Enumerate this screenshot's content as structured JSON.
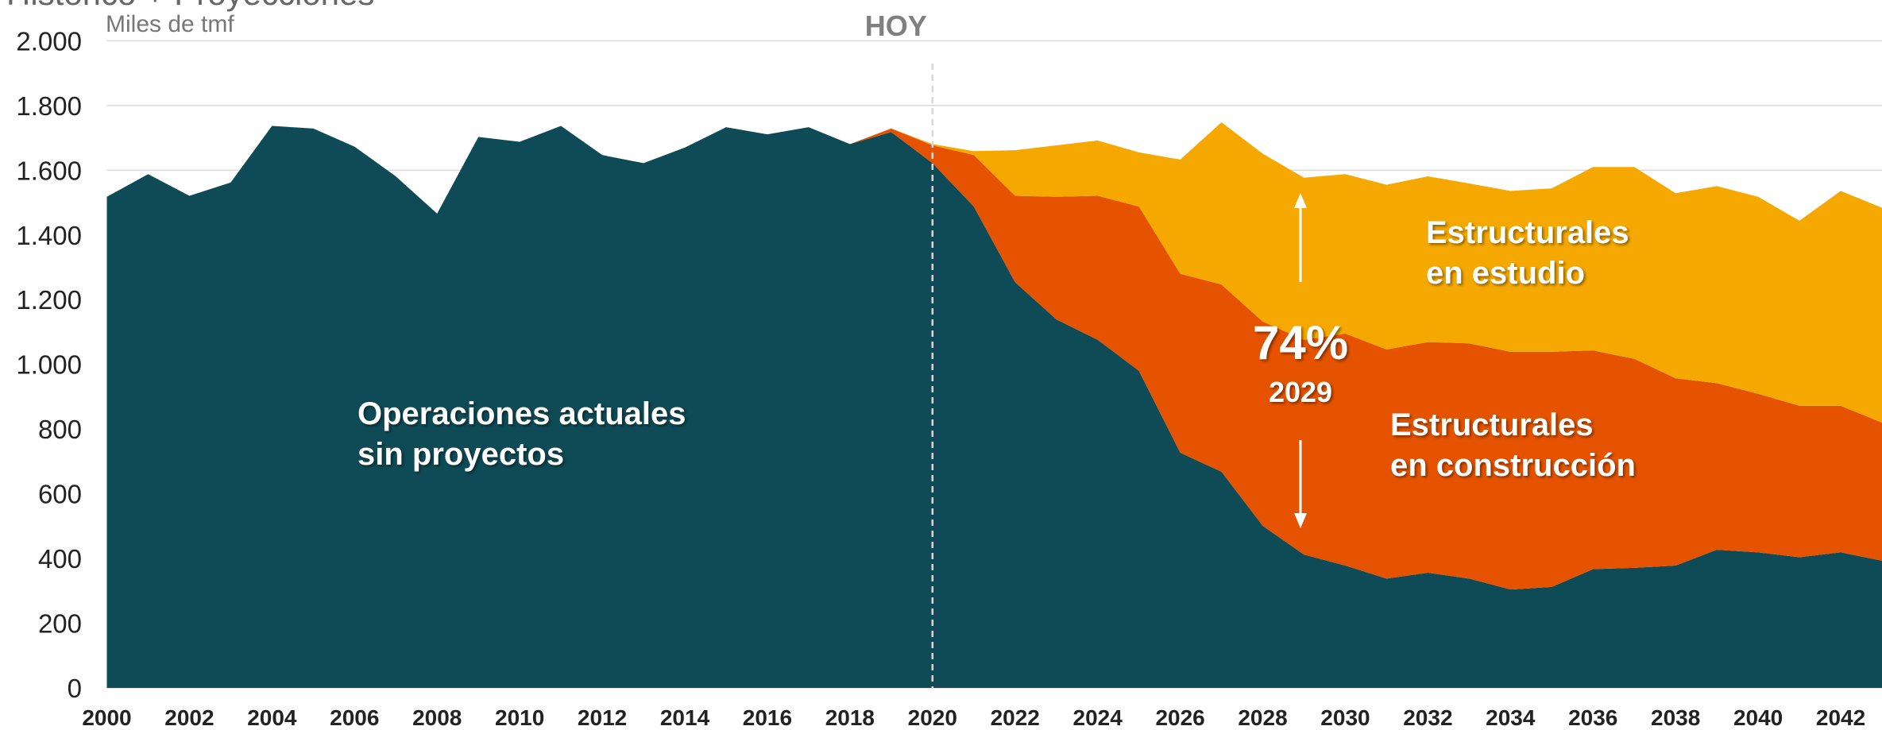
{
  "chart_data": {
    "type": "stacked_area",
    "title": "Histórico + Proyecciones",
    "subtitle": "Miles de tmf",
    "x": [
      2000,
      2001,
      2002,
      2003,
      2004,
      2005,
      2006,
      2007,
      2008,
      2009,
      2010,
      2011,
      2012,
      2013,
      2014,
      2015,
      2016,
      2017,
      2018,
      2019,
      2020,
      2021,
      2022,
      2023,
      2024,
      2025,
      2026,
      2027,
      2028,
      2029,
      2030,
      2031,
      2032,
      2033,
      2034,
      2035,
      2036,
      2037,
      2038,
      2039,
      2040,
      2041,
      2042,
      2043
    ],
    "xlim": [
      2000,
      2043
    ],
    "xticks": [
      2000,
      2002,
      2004,
      2006,
      2008,
      2010,
      2012,
      2014,
      2016,
      2018,
      2020,
      2022,
      2024,
      2026,
      2028,
      2030,
      2032,
      2034,
      2036,
      2038,
      2040,
      2042
    ],
    "ylim": [
      0,
      2000
    ],
    "yticks": [
      0,
      200,
      400,
      600,
      800,
      {
        "value": 1000,
        "label": "1.000"
      },
      {
        "value": 1200,
        "label": "1.200"
      },
      {
        "value": 1400,
        "label": "1.400"
      },
      {
        "value": 1600,
        "label": "1.600"
      },
      {
        "value": 1800,
        "label": "1.800"
      },
      {
        "value": 2000,
        "label": "2.000"
      }
    ],
    "grid": true,
    "series": [
      {
        "name": "Operaciones actuales\nsin proyectos",
        "color": "#0f4b56",
        "values": [
          1518,
          1588,
          1521,
          1562,
          1737,
          1729,
          1673,
          1581,
          1466,
          1703,
          1688,
          1737,
          1647,
          1622,
          1670,
          1733,
          1711,
          1733,
          1681,
          1718,
          1622,
          1488,
          1254,
          1139,
          1076,
          980,
          727,
          668,
          501,
          412,
          378,
          338,
          356,
          338,
          304,
          312,
          367,
          371,
          378,
          427,
          419,
          404,
          419,
          393
        ]
      },
      {
        "name": "Estructurales\nen construcción",
        "color": "#e55300",
        "values": [
          0,
          0,
          0,
          0,
          0,
          0,
          0,
          0,
          0,
          0,
          0,
          0,
          0,
          0,
          0,
          0,
          0,
          0,
          0,
          11,
          55,
          159,
          267,
          379,
          445,
          508,
          553,
          579,
          631,
          664,
          717,
          708,
          713,
          727,
          735,
          727,
          676,
          646,
          579,
          515,
          490,
          468,
          453,
          427
        ]
      },
      {
        "name": "Estructurales\nen estudio",
        "color": "#f5a800",
        "values": [
          0,
          0,
          0,
          0,
          0,
          0,
          0,
          0,
          0,
          0,
          0,
          0,
          0,
          0,
          0,
          0,
          0,
          0,
          0,
          0,
          4,
          12,
          141,
          159,
          171,
          167,
          353,
          501,
          519,
          501,
          493,
          509,
          512,
          494,
          497,
          505,
          567,
          593,
          572,
          609,
          609,
          572,
          664,
          664
        ]
      }
    ],
    "annotations": {
      "today": "HOY",
      "today_x": 2020,
      "share": "74%",
      "share_year": "2029"
    }
  }
}
